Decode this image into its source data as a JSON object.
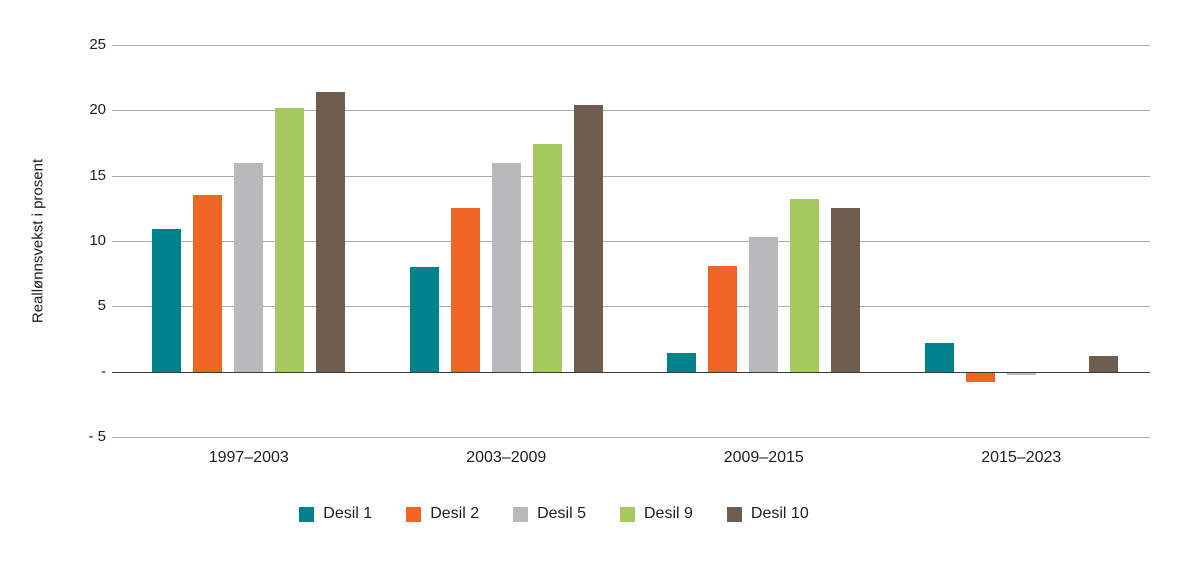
{
  "chart_data": {
    "type": "bar",
    "title": "",
    "xlabel": "",
    "ylabel": "Reallønnsvekst i prosent",
    "categories": [
      "1997–2003",
      "2003–2009",
      "2009–2015",
      "2015–2023"
    ],
    "series": [
      {
        "name": "Desil 1",
        "color": "#00828C",
        "values": [
          10.9,
          8.0,
          1.4,
          2.2
        ]
      },
      {
        "name": "Desil 2",
        "color": "#F16524",
        "values": [
          13.5,
          12.5,
          8.1,
          -0.7
        ]
      },
      {
        "name": "Desil 5",
        "color": "#B9B9BB",
        "values": [
          16.0,
          16.0,
          10.3,
          -0.2
        ]
      },
      {
        "name": "Desil 9",
        "color": "#A5C95E",
        "values": [
          20.2,
          17.4,
          13.2,
          0.0
        ]
      },
      {
        "name": "Desil 10",
        "color": "#6F5D50",
        "values": [
          21.4,
          20.4,
          12.5,
          1.2
        ]
      }
    ],
    "ylim": [
      -5,
      25
    ],
    "yticks": [
      {
        "value": 25,
        "label": "25"
      },
      {
        "value": 20,
        "label": "20"
      },
      {
        "value": 15,
        "label": "15"
      },
      {
        "value": 10,
        "label": "10"
      },
      {
        "value": 5,
        "label": "5"
      },
      {
        "value": 0,
        "label": "-"
      },
      {
        "value": -5,
        "label": "- 5"
      }
    ],
    "grid": true,
    "legend_position": "bottom",
    "legend": [
      "Desil 1",
      "Desil 2",
      "Desil 5",
      "Desil 9",
      "Desil 10"
    ]
  },
  "colors": {
    "background": "#ffffff",
    "text": "#1d1d1b",
    "grid": "#ababab",
    "zero_line": "#3c3c3b"
  }
}
